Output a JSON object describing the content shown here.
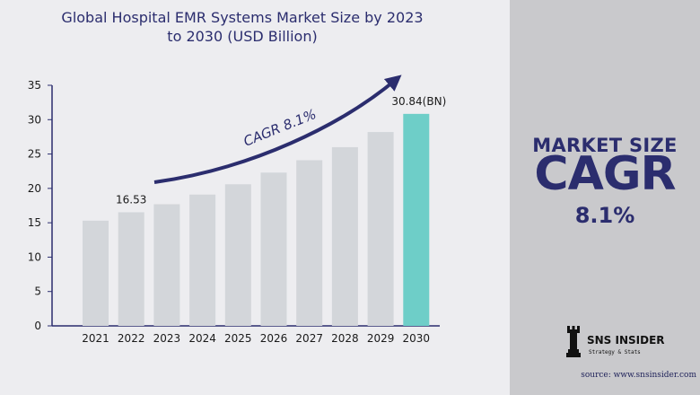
{
  "chart_data": {
    "type": "bar",
    "title": "Global Hospital EMR Systems Market Size by 2023 to 2030 (USD Billion)",
    "categories": [
      "2021",
      "2022",
      "2023",
      "2024",
      "2025",
      "2026",
      "2027",
      "2028",
      "2029",
      "2030"
    ],
    "values": [
      15.3,
      16.53,
      17.7,
      19.1,
      20.6,
      22.3,
      24.1,
      26.0,
      28.2,
      30.84
    ],
    "ylim": [
      0,
      35
    ],
    "yticks": [
      0,
      5,
      10,
      15,
      20,
      25,
      30,
      35
    ],
    "ylabel": "",
    "xlabel": "",
    "grid": false,
    "legend": "none",
    "data_labels": {
      "1": "16.53",
      "9": "30.84(BN)"
    },
    "annotation": "CAGR 8.1%",
    "colors": {
      "bar": "#d3d6da",
      "highlight_bar": "#6ecec8",
      "highlight_index": 9,
      "arrow": "#2b2d6e"
    }
  },
  "side_panel": {
    "market_size_label": "MARKET SIZE",
    "cagr_label": "CAGR",
    "cagr_value": "8.1%"
  },
  "brand": {
    "name": "SNS INSIDER",
    "tagline": "Strategy & Stats",
    "source": "source: www.snsinsider.com"
  }
}
